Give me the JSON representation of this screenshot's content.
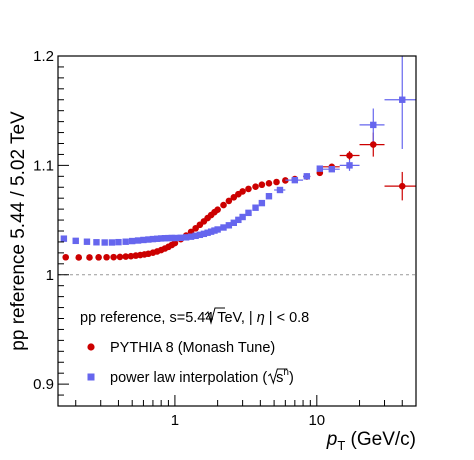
{
  "chart_data": {
    "type": "scatter",
    "title": "",
    "xlabel_main": "p",
    "xlabel_sub": "T",
    "xlabel_unit": " (GeV/c)",
    "ylabel": "pp reference 5.44 / 5.02 TeV",
    "xscale": "log",
    "xlim": [
      0.15,
      50
    ],
    "ylim": [
      0.88,
      1.2
    ],
    "x_ticks": [
      1,
      10
    ],
    "x_tick_labels": [
      "1",
      "10"
    ],
    "y_ticks": [
      0.9,
      1,
      1.1,
      1.2
    ],
    "y_tick_labels": [
      "0.9",
      "1",
      "1.1",
      "1.2"
    ],
    "reference_line": 1.0,
    "grid": false,
    "legend": {
      "placement": "bottom-left",
      "header_prefix": "pp reference, ",
      "header_sqrt": "s",
      "header_energy": "=5.44 TeV, | ",
      "header_eta": "η",
      "header_cut": " | < 0.8",
      "pythia_label": "PYTHIA 8 (Monash Tune)",
      "power_label_prefix": "power law interpolation (",
      "power_sqrt": "s",
      "power_exp": "n",
      "power_label_suffix": ")"
    },
    "series": [
      {
        "name": "PYTHIA 8 (Monash Tune)",
        "marker": "circle",
        "color": "#cc0000",
        "points": [
          {
            "x": 0.17,
            "y": 1.016
          },
          {
            "x": 0.21,
            "y": 1.0158
          },
          {
            "x": 0.25,
            "y": 1.0158
          },
          {
            "x": 0.29,
            "y": 1.0159
          },
          {
            "x": 0.33,
            "y": 1.016
          },
          {
            "x": 0.37,
            "y": 1.0161
          },
          {
            "x": 0.41,
            "y": 1.0163
          },
          {
            "x": 0.45,
            "y": 1.0166
          },
          {
            "x": 0.49,
            "y": 1.017
          },
          {
            "x": 0.53,
            "y": 1.0175
          },
          {
            "x": 0.57,
            "y": 1.018
          },
          {
            "x": 0.61,
            "y": 1.0186
          },
          {
            "x": 0.65,
            "y": 1.0192
          },
          {
            "x": 0.7,
            "y": 1.0202
          },
          {
            "x": 0.75,
            "y": 1.0213
          },
          {
            "x": 0.8,
            "y": 1.0226
          },
          {
            "x": 0.85,
            "y": 1.024
          },
          {
            "x": 0.9,
            "y": 1.0255
          },
          {
            "x": 0.95,
            "y": 1.0272
          },
          {
            "x": 1.0,
            "y": 1.029
          },
          {
            "x": 1.1,
            "y": 1.0325
          },
          {
            "x": 1.2,
            "y": 1.0358
          },
          {
            "x": 1.3,
            "y": 1.0392
          },
          {
            "x": 1.4,
            "y": 1.0425
          },
          {
            "x": 1.5,
            "y": 1.0457
          },
          {
            "x": 1.6,
            "y": 1.0488
          },
          {
            "x": 1.7,
            "y": 1.0518
          },
          {
            "x": 1.8,
            "y": 1.0546
          },
          {
            "x": 1.9,
            "y": 1.0572
          },
          {
            "x": 2.0,
            "y": 1.0595
          },
          {
            "x": 2.2,
            "y": 1.0637
          },
          {
            "x": 2.4,
            "y": 1.0675
          },
          {
            "x": 2.6,
            "y": 1.0708
          },
          {
            "x": 2.8,
            "y": 1.0737
          },
          {
            "x": 3.0,
            "y": 1.0762
          },
          {
            "x": 3.3,
            "y": 1.0785
          },
          {
            "x": 3.7,
            "y": 1.0805
          },
          {
            "x": 4.1,
            "y": 1.0823
          },
          {
            "x": 4.6,
            "y": 1.0836
          },
          {
            "x": 5.2,
            "y": 1.0848
          },
          {
            "x": 6.0,
            "y": 1.0862
          },
          {
            "x": 7.0,
            "y": 1.0875
          },
          {
            "x": 8.5,
            "y": 1.0898,
            "xerr": [
              8.0,
              9.0
            ],
            "yerr": 0.002
          },
          {
            "x": 10.5,
            "y": 1.0932,
            "xerr": [
              10.0,
              11.0
            ],
            "yerr": 0.002
          },
          {
            "x": 12.75,
            "y": 1.0987,
            "xerr": [
              11.0,
              14.5
            ],
            "yerr": 0.0025
          },
          {
            "x": 17.0,
            "y": 1.109,
            "xerr": [
              14.5,
              20.0
            ],
            "yerr": 0.004
          },
          {
            "x": 25.0,
            "y": 1.119,
            "xerr": [
              20.0,
              30.0
            ],
            "yerr": 0.011
          },
          {
            "x": 40.0,
            "y": 1.081,
            "xerr": [
              30.0,
              50.0
            ],
            "yerr": 0.013
          }
        ]
      },
      {
        "name": "power law interpolation",
        "marker": "square",
        "color": "#6666ee",
        "points": [
          {
            "x": 0.165,
            "y": 1.033
          },
          {
            "x": 0.2,
            "y": 1.031
          },
          {
            "x": 0.24,
            "y": 1.0302
          },
          {
            "x": 0.28,
            "y": 1.0297
          },
          {
            "x": 0.32,
            "y": 1.0295
          },
          {
            "x": 0.36,
            "y": 1.0295
          },
          {
            "x": 0.4,
            "y": 1.0298
          },
          {
            "x": 0.45,
            "y": 1.0302
          },
          {
            "x": 0.5,
            "y": 1.0308
          },
          {
            "x": 0.55,
            "y": 1.0313
          },
          {
            "x": 0.6,
            "y": 1.0318
          },
          {
            "x": 0.65,
            "y": 1.0322
          },
          {
            "x": 0.7,
            "y": 1.0326
          },
          {
            "x": 0.75,
            "y": 1.0329
          },
          {
            "x": 0.8,
            "y": 1.0332
          },
          {
            "x": 0.85,
            "y": 1.0334
          },
          {
            "x": 0.9,
            "y": 1.0335
          },
          {
            "x": 0.95,
            "y": 1.0336
          },
          {
            "x": 1.0,
            "y": 1.0336
          },
          {
            "x": 1.1,
            "y": 1.0338
          },
          {
            "x": 1.2,
            "y": 1.0342
          },
          {
            "x": 1.3,
            "y": 1.0348
          },
          {
            "x": 1.4,
            "y": 1.0356
          },
          {
            "x": 1.5,
            "y": 1.0365
          },
          {
            "x": 1.6,
            "y": 1.0374
          },
          {
            "x": 1.7,
            "y": 1.0384
          },
          {
            "x": 1.8,
            "y": 1.0394
          },
          {
            "x": 1.9,
            "y": 1.0404
          },
          {
            "x": 2.0,
            "y": 1.0414
          },
          {
            "x": 2.2,
            "y": 1.0432
          },
          {
            "x": 2.4,
            "y": 1.0452
          },
          {
            "x": 2.6,
            "y": 1.0475
          },
          {
            "x": 2.8,
            "y": 1.0502
          },
          {
            "x": 3.0,
            "y": 1.0528
          },
          {
            "x": 3.3,
            "y": 1.0566
          },
          {
            "x": 3.7,
            "y": 1.0613
          },
          {
            "x": 4.1,
            "y": 1.0655
          },
          {
            "x": 4.6,
            "y": 1.0718
          },
          {
            "x": 5.5,
            "y": 1.0775,
            "xerr": [
              5.0,
              6.0
            ]
          },
          {
            "x": 7.0,
            "y": 1.0865,
            "xerr": [
              6.0,
              8.0
            ]
          },
          {
            "x": 8.5,
            "y": 1.09,
            "xerr": [
              8.0,
              9.0
            ]
          },
          {
            "x": 10.5,
            "y": 1.097,
            "xerr": [
              10.0,
              11.0
            ]
          },
          {
            "x": 12.75,
            "y": 1.0965,
            "xerr": [
              11.0,
              14.5
            ]
          },
          {
            "x": 17.0,
            "y": 1.1,
            "xerr": [
              14.5,
              20.0
            ],
            "yerr": 0.005
          },
          {
            "x": 25.0,
            "y": 1.137,
            "xerr": [
              20.0,
              30.0
            ],
            "yerr": 0.015
          },
          {
            "x": 40.0,
            "y": 1.16,
            "xerr": [
              30.0,
              50.0
            ],
            "yerr": 0.045
          }
        ]
      }
    ]
  }
}
